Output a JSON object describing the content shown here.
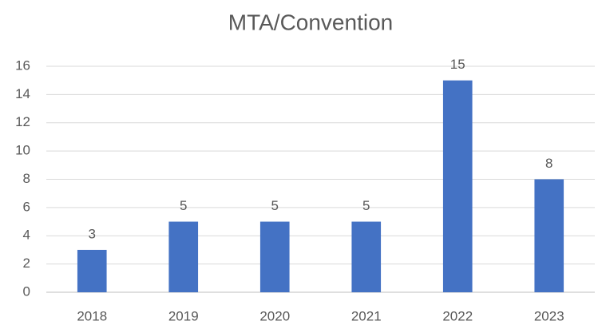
{
  "chart_data": {
    "type": "bar",
    "title": "MTA/Convention",
    "categories": [
      "2018",
      "2019",
      "2020",
      "2021",
      "2022",
      "2023"
    ],
    "values": [
      3,
      5,
      5,
      5,
      15,
      8
    ],
    "color": "#4472c4",
    "ylim": [
      0,
      16
    ],
    "yticks": [
      0,
      2,
      4,
      6,
      8,
      10,
      12,
      14,
      16
    ],
    "grid": true
  }
}
